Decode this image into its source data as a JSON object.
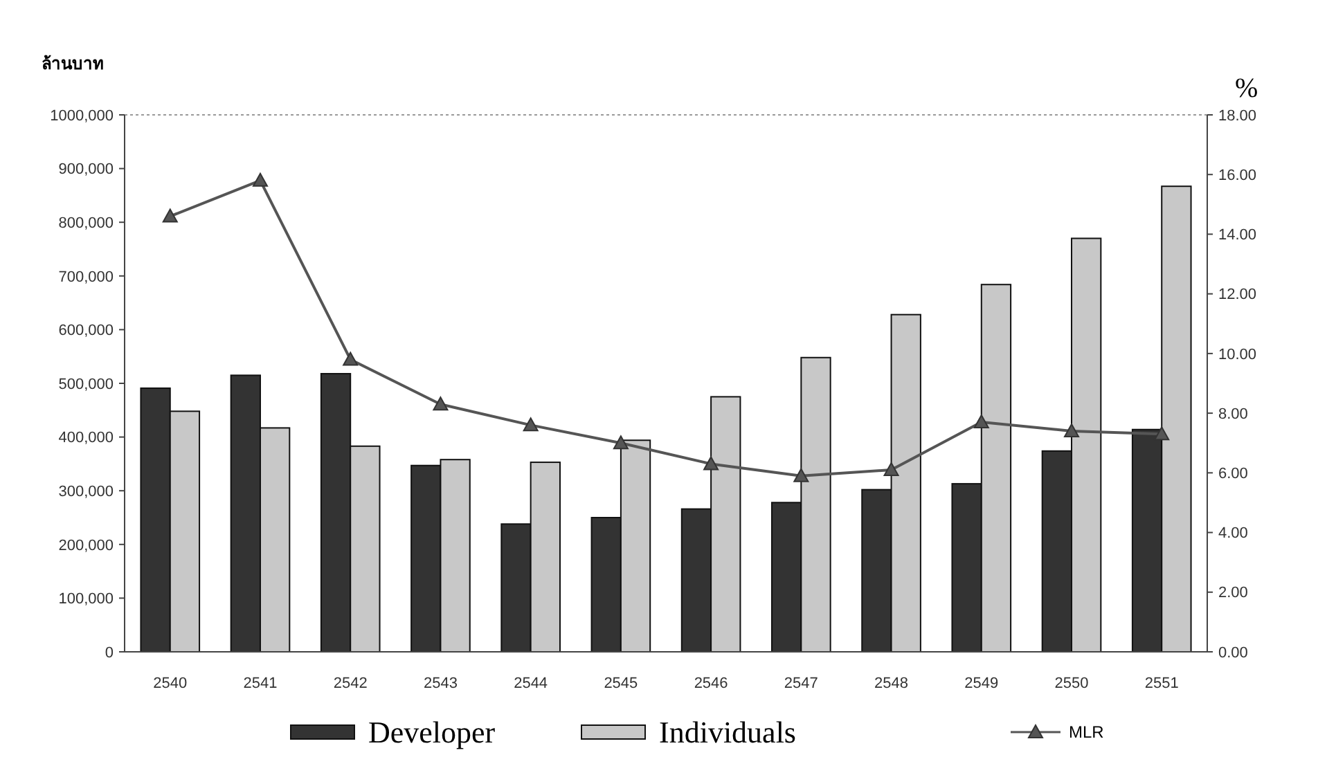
{
  "chart_data": {
    "type": "bar",
    "ylabel": "ล้านบาท",
    "y2label": "%",
    "categories": [
      "2540",
      "2541",
      "2542",
      "2543",
      "2544",
      "2545",
      "2546",
      "2547",
      "2548",
      "2549",
      "2550",
      "2551"
    ],
    "series": [
      {
        "name": "Developer",
        "color": "#333333",
        "values": [
          491000,
          515000,
          518000,
          347000,
          238000,
          250000,
          266000,
          278000,
          302000,
          313000,
          374000,
          414000
        ]
      },
      {
        "name": "Individuals",
        "color": "#c8c8c8",
        "values": [
          448000,
          417000,
          383000,
          358000,
          353000,
          394000,
          475000,
          548000,
          628000,
          684000,
          770000,
          867000
        ]
      },
      {
        "name": "MLR",
        "type": "line",
        "axis": "y2",
        "color": "#555555",
        "marker": "triangle",
        "values": [
          14.6,
          15.8,
          9.8,
          8.3,
          7.6,
          7.0,
          6.3,
          5.9,
          6.1,
          7.7,
          7.4,
          7.3
        ]
      }
    ],
    "ylim": [
      0,
      1000000
    ],
    "yticks": [
      {
        "value": 0,
        "label": "0"
      },
      {
        "value": 100000,
        "label": "100,000"
      },
      {
        "value": 200000,
        "label": "200,000"
      },
      {
        "value": 300000,
        "label": "300,000"
      },
      {
        "value": 400000,
        "label": "400,000"
      },
      {
        "value": 500000,
        "label": "500,000"
      },
      {
        "value": 600000,
        "label": "600,000"
      },
      {
        "value": 700000,
        "label": "700,000"
      },
      {
        "value": 800000,
        "label": "800,000"
      },
      {
        "value": 900000,
        "label": "900,000"
      },
      {
        "value": 1000000,
        "label": "1000,000"
      }
    ],
    "y2lim": [
      0,
      18
    ],
    "y2ticks": [
      {
        "value": 0,
        "label": "0.00"
      },
      {
        "value": 2,
        "label": "2.00"
      },
      {
        "value": 4,
        "label": "4.00"
      },
      {
        "value": 6,
        "label": "6.00"
      },
      {
        "value": 8,
        "label": "8.00"
      },
      {
        "value": 10,
        "label": "10.00"
      },
      {
        "value": 12,
        "label": "12.00"
      },
      {
        "value": 14,
        "label": "14.00"
      },
      {
        "value": 16,
        "label": "16.00"
      },
      {
        "value": 18,
        "label": "18.00"
      }
    ],
    "legend": "bottom",
    "grid": false
  }
}
